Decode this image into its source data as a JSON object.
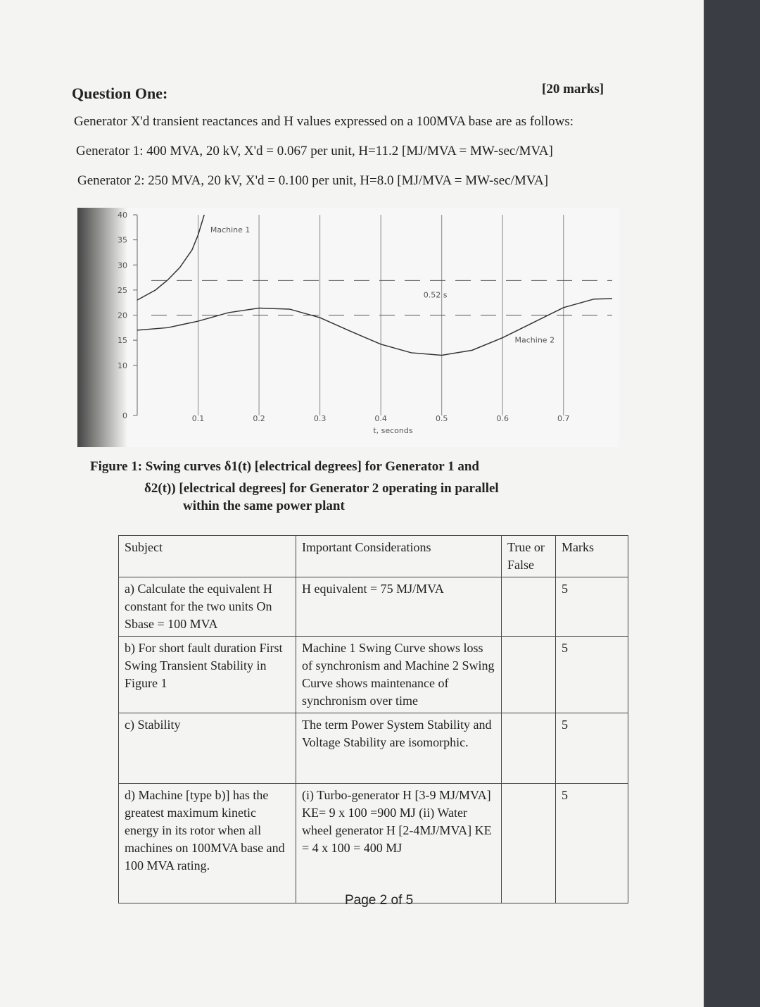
{
  "header": {
    "title": "Question One:",
    "marks": "[20 marks]"
  },
  "paragraphs": [
    "Generator X'd transient reactances and H values expressed on a 100MVA base are as follows:",
    "Generator 1: 400 MVA, 20 kV, X'd = 0.067 per unit, H=11.2 [MJ/MVA = MW-sec/MVA]",
    "Generator 2: 250 MVA, 20 kV, X'd = 0.100 per unit, H=8.0 [MJ/MVA = MW-sec/MVA]"
  ],
  "chart_data": {
    "type": "line",
    "xlabel": "t, seconds",
    "xlim": [
      0,
      0.78
    ],
    "ylim": [
      0,
      40
    ],
    "xticks": [
      0.1,
      0.2,
      0.3,
      0.4,
      0.5,
      0.6,
      0.7
    ],
    "yticks": [
      0,
      10,
      15,
      20,
      25,
      30,
      35,
      40
    ],
    "grid": true,
    "annotations": [
      "Machine 1",
      "0.52 s",
      "Machine 2"
    ],
    "series": [
      {
        "color": "#333333",
        "x": [
          0,
          0.03,
          0.05,
          0.07,
          0.09,
          0.1,
          0.11
        ],
        "values": [
          23,
          25,
          27,
          29.5,
          33,
          36,
          40
        ]
      },
      {
        "color": "#333333",
        "x": [
          0,
          0.05,
          0.1,
          0.15,
          0.2,
          0.25,
          0.3,
          0.35,
          0.4,
          0.45,
          0.5,
          0.55,
          0.6,
          0.65,
          0.7,
          0.75,
          0.78
        ],
        "values": [
          17,
          17.5,
          18.8,
          20.5,
          21.4,
          21.2,
          19.5,
          16.8,
          14.2,
          12.5,
          12,
          13,
          15.5,
          18.5,
          21.5,
          23.2,
          23.3
        ]
      }
    ]
  },
  "caption": [
    "Figure 1: Swing curves δ1(t) [electrical degrees] for Generator 1 and",
    "δ2(t)) [electrical degrees] for Generator 2 operating in parallel",
    "within the same power plant"
  ],
  "table": {
    "header": [
      "Subject",
      "Important Considerations",
      "True or False",
      "Marks"
    ],
    "rows": [
      [
        "a) Calculate the equivalent H constant for the two units On Sbase = 100 MVA",
        "H equivalent = 75 MJ/MVA",
        "",
        "5"
      ],
      [
        "b) For short fault duration First Swing Transient Stability in Figure 1",
        "Machine 1 Swing Curve shows loss of synchronism and Machine 2 Swing Curve shows maintenance of synchronism over time",
        "",
        "5"
      ],
      [
        "c) Stability",
        "The term Power System Stability and Voltage Stability are isomorphic.",
        "",
        "5"
      ],
      [
        "d) Machine [type b)] has the greatest maximum kinetic energy in its rotor when all machines on 100MVA base and 100 MVA rating.",
        "(i) Turbo-generator H [3-9 MJ/MVA] KE= 9 x 100 =900 MJ (ii) Water wheel generator H [2-4MJ/MVA] KE = 4 x 100 = 400 MJ",
        "",
        "5"
      ]
    ]
  },
  "footer": "Page 2 of 5"
}
